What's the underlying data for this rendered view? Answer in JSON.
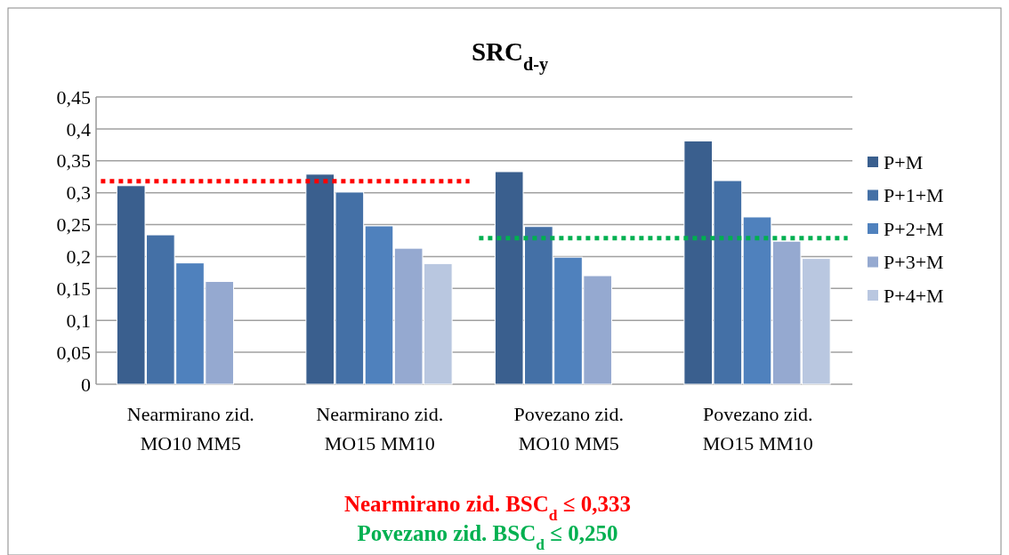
{
  "chart_data": {
    "type": "bar",
    "title": "SRC$_{d-y}$",
    "categories": [
      "Nearmirano zid.\nMO10 MM5",
      "Nearmirano zid.\nMO15 MM10",
      "Povezano zid.\nMO10 MM5",
      "Povezano zid.\nMO15 MM10"
    ],
    "series": [
      {
        "name": "P+M",
        "color": "#3a5f8e",
        "values": [
          0.311,
          0.329,
          0.333,
          0.381
        ]
      },
      {
        "name": "P+1+M",
        "color": "#4470a6",
        "values": [
          0.234,
          0.301,
          0.247,
          0.319
        ]
      },
      {
        "name": "P+2+M",
        "color": "#4f81bd",
        "values": [
          0.19,
          0.248,
          0.199,
          0.262
        ]
      },
      {
        "name": "P+3+M",
        "color": "#95a9d0",
        "values": [
          0.161,
          0.213,
          0.17,
          0.224
        ]
      },
      {
        "name": "P+4+M",
        "color": "#b9c7e0",
        "values": [
          null,
          0.189,
          null,
          0.197
        ]
      }
    ],
    "ylim": [
      0,
      0.45
    ],
    "yticks": [
      0,
      {
        "value": 0.05,
        "label": "0,05"
      },
      {
        "value": 0.1,
        "label": "0,1"
      },
      {
        "value": 0.15,
        "label": "0,15"
      },
      {
        "value": 0.2,
        "label": "0,2"
      },
      {
        "value": 0.25,
        "label": "0,25"
      },
      {
        "value": 0.3,
        "label": "0,3"
      },
      {
        "value": 0.35,
        "label": "0,35"
      },
      {
        "value": 0.4,
        "label": "0,4"
      },
      {
        "value": 0.45,
        "label": "0,45"
      }
    ],
    "grid": "y",
    "legend": "right",
    "ref_lines": [
      {
        "axis": "y",
        "value": 0.318,
        "label": "Nearmirano zid. BSC$_{d}$ ≤ 0,333",
        "color": "#ff0000",
        "line_style": "dotted"
      },
      {
        "axis": "y",
        "value": 0.229,
        "label": "Povezano zid. BSC$_{d}$ ≤ 0,250",
        "color": "#00b050",
        "line_style": "dotted"
      }
    ]
  }
}
